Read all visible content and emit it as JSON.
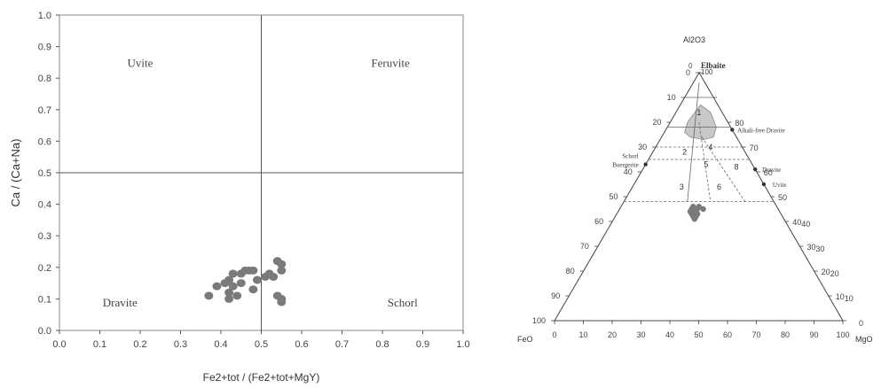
{
  "chart_data": [
    {
      "type": "scatter",
      "title": "",
      "xlabel": "Fe2+tot / (Fe2+tot+MgY)",
      "ylabel": "Ca / (Ca+Na)",
      "xlim": [
        0,
        1
      ],
      "ylim": [
        0,
        1
      ],
      "x_ticks": [
        "0.0",
        "0.1",
        "0.2",
        "0.3",
        "0.4",
        "0.5",
        "0.6",
        "0.7",
        "0.8",
        "0.9",
        "1.0"
      ],
      "y_ticks": [
        "0.0",
        "0.1",
        "0.2",
        "0.3",
        "0.4",
        "0.5",
        "0.6",
        "0.7",
        "0.8",
        "0.9",
        "1.0"
      ],
      "divider_x": 0.5,
      "divider_y": 0.5,
      "grid": false,
      "fields": [
        {
          "name": "Uvite",
          "x": 0.2,
          "y": 0.85
        },
        {
          "name": "Feruvite",
          "x": 0.82,
          "y": 0.85
        },
        {
          "name": "Dravite",
          "x": 0.15,
          "y": 0.09
        },
        {
          "name": "Schorl",
          "x": 0.85,
          "y": 0.09
        }
      ],
      "points": [
        [
          0.37,
          0.11
        ],
        [
          0.39,
          0.14
        ],
        [
          0.41,
          0.15
        ],
        [
          0.42,
          0.16
        ],
        [
          0.42,
          0.12
        ],
        [
          0.42,
          0.1
        ],
        [
          0.43,
          0.14
        ],
        [
          0.43,
          0.18
        ],
        [
          0.44,
          0.11
        ],
        [
          0.45,
          0.15
        ],
        [
          0.45,
          0.18
        ],
        [
          0.46,
          0.19
        ],
        [
          0.47,
          0.19
        ],
        [
          0.48,
          0.19
        ],
        [
          0.48,
          0.13
        ],
        [
          0.49,
          0.16
        ],
        [
          0.51,
          0.17
        ],
        [
          0.52,
          0.18
        ],
        [
          0.53,
          0.17
        ],
        [
          0.54,
          0.22
        ],
        [
          0.55,
          0.21
        ],
        [
          0.55,
          0.19
        ],
        [
          0.54,
          0.11
        ],
        [
          0.55,
          0.1
        ],
        [
          0.55,
          0.09
        ]
      ],
      "point_color": "#7a7a7a"
    },
    {
      "type": "scatter",
      "subtype": "ternary",
      "apex_labels": {
        "top": "Al2O3",
        "left": "FeO",
        "right": "MgO"
      },
      "apex_top_name": "Elbaite",
      "ticks": [
        "0",
        "10",
        "20",
        "30",
        "40",
        "50",
        "60",
        "70",
        "80",
        "90",
        "100"
      ],
      "end_members": [
        "Alkali-free Dravite",
        "Schorl",
        "Buergerite",
        "Dravite",
        "Uvite"
      ],
      "field_numbers": [
        "1",
        "2",
        "3",
        "4",
        "5",
        "6",
        "8"
      ],
      "shaded_field_color": "#c8c8c8",
      "points": [
        {
          "Al2O3": 46,
          "FeO": 29,
          "MgO": 25
        },
        {
          "Al2O3": 45,
          "FeO": 28,
          "MgO": 27
        },
        {
          "Al2O3": 44,
          "FeO": 29,
          "MgO": 27
        },
        {
          "Al2O3": 44,
          "FeO": 30,
          "MgO": 26
        },
        {
          "Al2O3": 43,
          "FeO": 30,
          "MgO": 27
        },
        {
          "Al2O3": 43,
          "FeO": 29,
          "MgO": 28
        },
        {
          "Al2O3": 42,
          "FeO": 30,
          "MgO": 28
        },
        {
          "Al2O3": 42,
          "FeO": 31,
          "MgO": 27
        },
        {
          "Al2O3": 41,
          "FeO": 31,
          "MgO": 28
        },
        {
          "Al2O3": 45,
          "FeO": 30,
          "MgO": 25
        },
        {
          "Al2O3": 44,
          "FeO": 31,
          "MgO": 25
        },
        {
          "Al2O3": 43,
          "FeO": 31,
          "MgO": 26
        },
        {
          "Al2O3": 46,
          "FeO": 27,
          "MgO": 27
        },
        {
          "Al2O3": 45,
          "FeO": 26,
          "MgO": 29
        }
      ],
      "point_color": "#7a7a7a"
    }
  ]
}
